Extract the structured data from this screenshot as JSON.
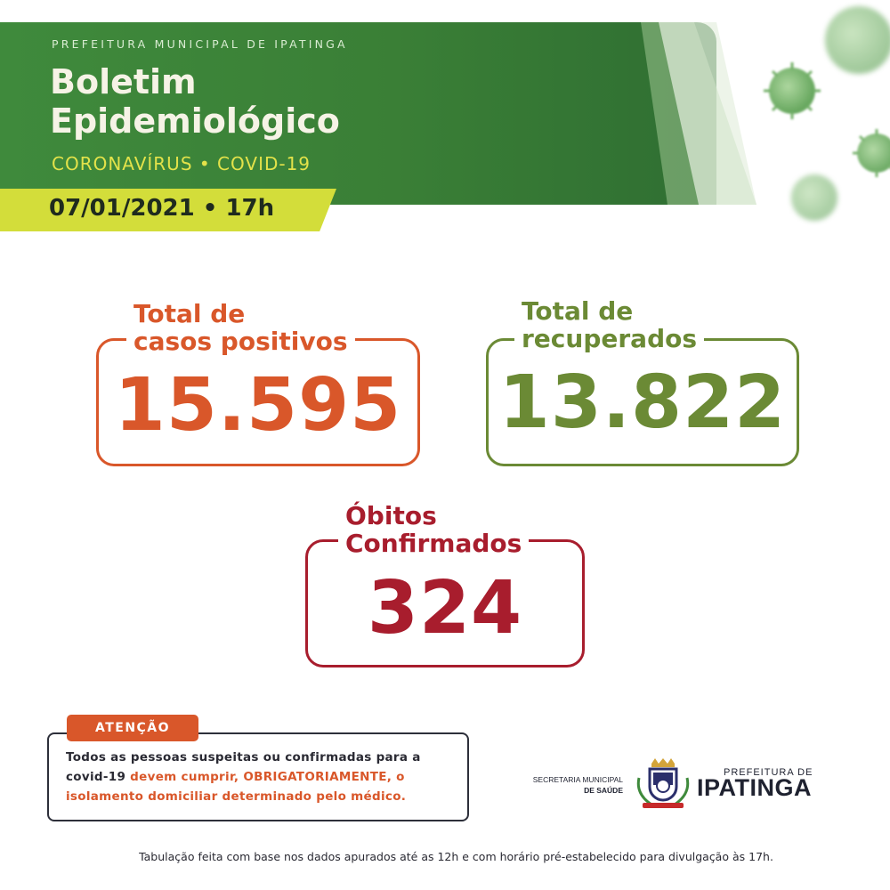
{
  "header": {
    "org": "PREFEITURA MUNICIPAL DE IPATINGA",
    "title_line1": "Boletim",
    "title_line2": "Epidemiológico",
    "subtitle": "CORONAVÍRUS • COVID-19",
    "date": "07/01/2021 • 17h"
  },
  "stats": {
    "positive": {
      "label_line1": "Total de",
      "label_line2": "casos positivos",
      "value": "15.595",
      "color": "#d9572a"
    },
    "recovered": {
      "label_line1": "Total de",
      "label_line2": "recuperados",
      "value": "13.822",
      "color": "#6b8a35"
    },
    "deaths": {
      "label_line1": "Óbitos",
      "label_line2": "Confirmados",
      "value": "324",
      "color": "#a81d2d"
    }
  },
  "attention": {
    "tag": "ATENÇÃO",
    "text_a": "Todos as pessoas suspeitas ou confirmadas para a covid-19 ",
    "text_b": "devem cumprir, OBRIGATORIAMENTE, o isolamento domiciliar determinado pelo médico."
  },
  "logos": {
    "secretaria_line1": "SECRETARIA MUNICIPAL",
    "secretaria_line2": "DE SAÚDE",
    "prefeitura_small": "PREFEITURA DE",
    "prefeitura_big": "IPATINGA"
  },
  "footer": "Tabulação feita com base nos dados apurados até as 12h e com horário pré-estabelecido para divulgação às 17h.",
  "colors": {
    "header_green": "#3f8a3c",
    "accent_lime": "#d3dd3a",
    "subtitle_yellow": "#e3e24a"
  }
}
